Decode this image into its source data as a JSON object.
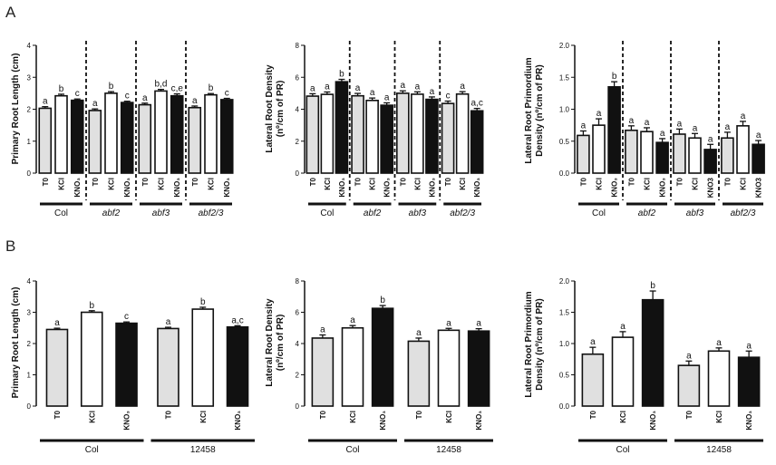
{
  "panel_labels": [
    "A",
    "B"
  ],
  "colors": {
    "T0": "#e0e0e0",
    "KCl": "#ffffff",
    "KNO3": "#111111",
    "stroke": "#111111"
  },
  "chart_data": [
    {
      "id": "A1",
      "type": "bar",
      "panel": "A",
      "ylabel": "Primary Root Length (cm)",
      "ylim": [
        0,
        4
      ],
      "yticks": [
        0,
        1,
        2,
        3,
        4
      ],
      "categories": [
        "T0",
        "KCl",
        "KNO3"
      ],
      "category_labels": [
        "T0",
        "KCl",
        "KNO₃"
      ],
      "groups": [
        "Col",
        "abf2",
        "abf3",
        "abf2/3"
      ],
      "group_italic": [
        false,
        true,
        true,
        true
      ],
      "dashed_separators": true,
      "values": [
        [
          2.03,
          2.42,
          2.28
        ],
        [
          1.96,
          2.5,
          2.21
        ],
        [
          2.14,
          2.57,
          2.42
        ],
        [
          2.05,
          2.45,
          2.3
        ]
      ],
      "errors": [
        [
          0.05,
          0.05,
          0.04
        ],
        [
          0.05,
          0.05,
          0.04
        ],
        [
          0.05,
          0.05,
          0.06
        ],
        [
          0.05,
          0.04,
          0.04
        ]
      ],
      "sig": [
        [
          "a",
          "b",
          "c"
        ],
        [
          "a",
          "b",
          "c"
        ],
        [
          "a",
          "b,d",
          "c,e"
        ],
        [
          "a",
          "b",
          "c"
        ]
      ]
    },
    {
      "id": "A2",
      "type": "bar",
      "panel": "A",
      "ylabel": "Lateral Root Density (nº/cm of PR)",
      "ylabel_lines": [
        "Lateral Root Density",
        "(nº/cm of PR)"
      ],
      "ylim": [
        0,
        8
      ],
      "yticks": [
        0,
        2,
        4,
        6,
        8
      ],
      "categories": [
        "T0",
        "KCl",
        "KNO3"
      ],
      "category_labels": [
        "T0",
        "KCl",
        "KNO₃"
      ],
      "groups": [
        "Col",
        "abf2",
        "abf3",
        "abf2/3"
      ],
      "group_italic": [
        false,
        true,
        true,
        true
      ],
      "dashed_separators": true,
      "values": [
        [
          4.82,
          4.93,
          5.72
        ],
        [
          4.84,
          4.55,
          4.25
        ],
        [
          5.0,
          4.94,
          4.62
        ],
        [
          4.36,
          4.95,
          3.9
        ]
      ],
      "errors": [
        [
          0.15,
          0.15,
          0.15
        ],
        [
          0.15,
          0.15,
          0.15
        ],
        [
          0.15,
          0.15,
          0.15
        ],
        [
          0.15,
          0.15,
          0.15
        ]
      ],
      "sig": [
        [
          "a",
          "a",
          "b"
        ],
        [
          "a",
          "a",
          "a"
        ],
        [
          "a",
          "a",
          "a"
        ],
        [
          "c",
          "a",
          "a,c"
        ]
      ]
    },
    {
      "id": "A3",
      "type": "bar",
      "panel": "A",
      "ylabel": "Lateral Root Primordium Density (nº/cm of PR)",
      "ylabel_lines": [
        "Lateral Root Primordium",
        "Density (nº/cm of PR)"
      ],
      "ylim": [
        0,
        2
      ],
      "yticks": [
        0,
        0.5,
        1.0,
        1.5,
        2.0
      ],
      "ytick_labels": [
        "0.0",
        "0.5",
        "1.0",
        "1.5",
        "2.0"
      ],
      "categories": [
        "T0",
        "KCl",
        "KNO3"
      ],
      "category_labels_by_group": [
        [
          "T0",
          "KCl",
          "KNO₃"
        ],
        [
          "T0",
          "KCl",
          "KNO₃"
        ],
        [
          "T0",
          "KCl",
          "KNO3"
        ],
        [
          "T0",
          "KCl",
          "KNO3"
        ]
      ],
      "groups": [
        "Col",
        "abf2",
        "abf3",
        "abf2/3"
      ],
      "group_italic": [
        false,
        true,
        true,
        true
      ],
      "dashed_separators": true,
      "values": [
        [
          0.59,
          0.75,
          1.35
        ],
        [
          0.67,
          0.65,
          0.48
        ],
        [
          0.61,
          0.55,
          0.37
        ],
        [
          0.55,
          0.74,
          0.45
        ]
      ],
      "errors": [
        [
          0.07,
          0.1,
          0.08
        ],
        [
          0.07,
          0.06,
          0.06
        ],
        [
          0.08,
          0.07,
          0.08
        ],
        [
          0.09,
          0.07,
          0.06
        ]
      ],
      "sig": [
        [
          "a",
          "a",
          "b"
        ],
        [
          "a",
          "a",
          "a"
        ],
        [
          "a",
          "a",
          "a"
        ],
        [
          "a",
          "a",
          "a"
        ]
      ]
    },
    {
      "id": "B1",
      "type": "bar",
      "panel": "B",
      "ylabel": "Primary Root Length (cm)",
      "ylim": [
        0,
        4
      ],
      "yticks": [
        0,
        1,
        2,
        3,
        4
      ],
      "categories": [
        "T0",
        "KCl",
        "KNO3"
      ],
      "category_labels": [
        "T0",
        "KCl",
        "KNO₃"
      ],
      "groups": [
        "Col",
        "12458"
      ],
      "group_italic": [
        false,
        false
      ],
      "dashed_separators": false,
      "values": [
        [
          2.45,
          3.0,
          2.65
        ],
        [
          2.48,
          3.1,
          2.53
        ]
      ],
      "errors": [
        [
          0.04,
          0.05,
          0.04
        ],
        [
          0.04,
          0.06,
          0.04
        ]
      ],
      "sig": [
        [
          "a",
          "b",
          "c"
        ],
        [
          "a",
          "b",
          "a,c"
        ]
      ]
    },
    {
      "id": "B2",
      "type": "bar",
      "panel": "B",
      "ylabel": "Lateral Root Density (nº/cm of PR)",
      "ylabel_lines": [
        "Lateral Root Density",
        "(nº/cm of PR)"
      ],
      "ylim": [
        0,
        8
      ],
      "yticks": [
        0,
        2,
        4,
        6,
        8
      ],
      "categories": [
        "T0",
        "KCl",
        "KNO3"
      ],
      "category_labels": [
        "T0",
        "KCl",
        "KNO₃"
      ],
      "groups": [
        "Col",
        "12458"
      ],
      "group_italic": [
        false,
        false
      ],
      "dashed_separators": false,
      "values": [
        [
          4.35,
          5.0,
          6.25
        ],
        [
          4.15,
          4.85,
          4.8
        ]
      ],
      "errors": [
        [
          0.2,
          0.15,
          0.18
        ],
        [
          0.2,
          0.12,
          0.15
        ]
      ],
      "sig": [
        [
          "a",
          "a",
          "b"
        ],
        [
          "a",
          "a",
          "a"
        ]
      ]
    },
    {
      "id": "B3",
      "type": "bar",
      "panel": "B",
      "ylabel": "Lateral Root Primordium Density (nº/cm of PR)",
      "ylabel_lines": [
        "Lateral Root Primordium",
        "Density (nº/cm of PR)"
      ],
      "ylim": [
        0,
        2
      ],
      "yticks": [
        0,
        0.5,
        1.0,
        1.5,
        2.0
      ],
      "ytick_labels": [
        "0.0",
        "0.5",
        "1.0",
        "1.5",
        "2.0"
      ],
      "categories": [
        "T0",
        "KCl",
        "KNO3"
      ],
      "category_labels": [
        "T0",
        "KCl",
        "KNO₃"
      ],
      "groups": [
        "Col",
        "12458"
      ],
      "group_italic": [
        false,
        false
      ],
      "dashed_separators": false,
      "values": [
        [
          0.83,
          1.1,
          1.7
        ],
        [
          0.65,
          0.88,
          0.78
        ]
      ],
      "errors": [
        [
          0.11,
          0.09,
          0.14
        ],
        [
          0.07,
          0.05,
          0.1
        ]
      ],
      "sig": [
        [
          "a",
          "a",
          "b"
        ],
        [
          "a",
          "a",
          "a"
        ]
      ]
    }
  ]
}
